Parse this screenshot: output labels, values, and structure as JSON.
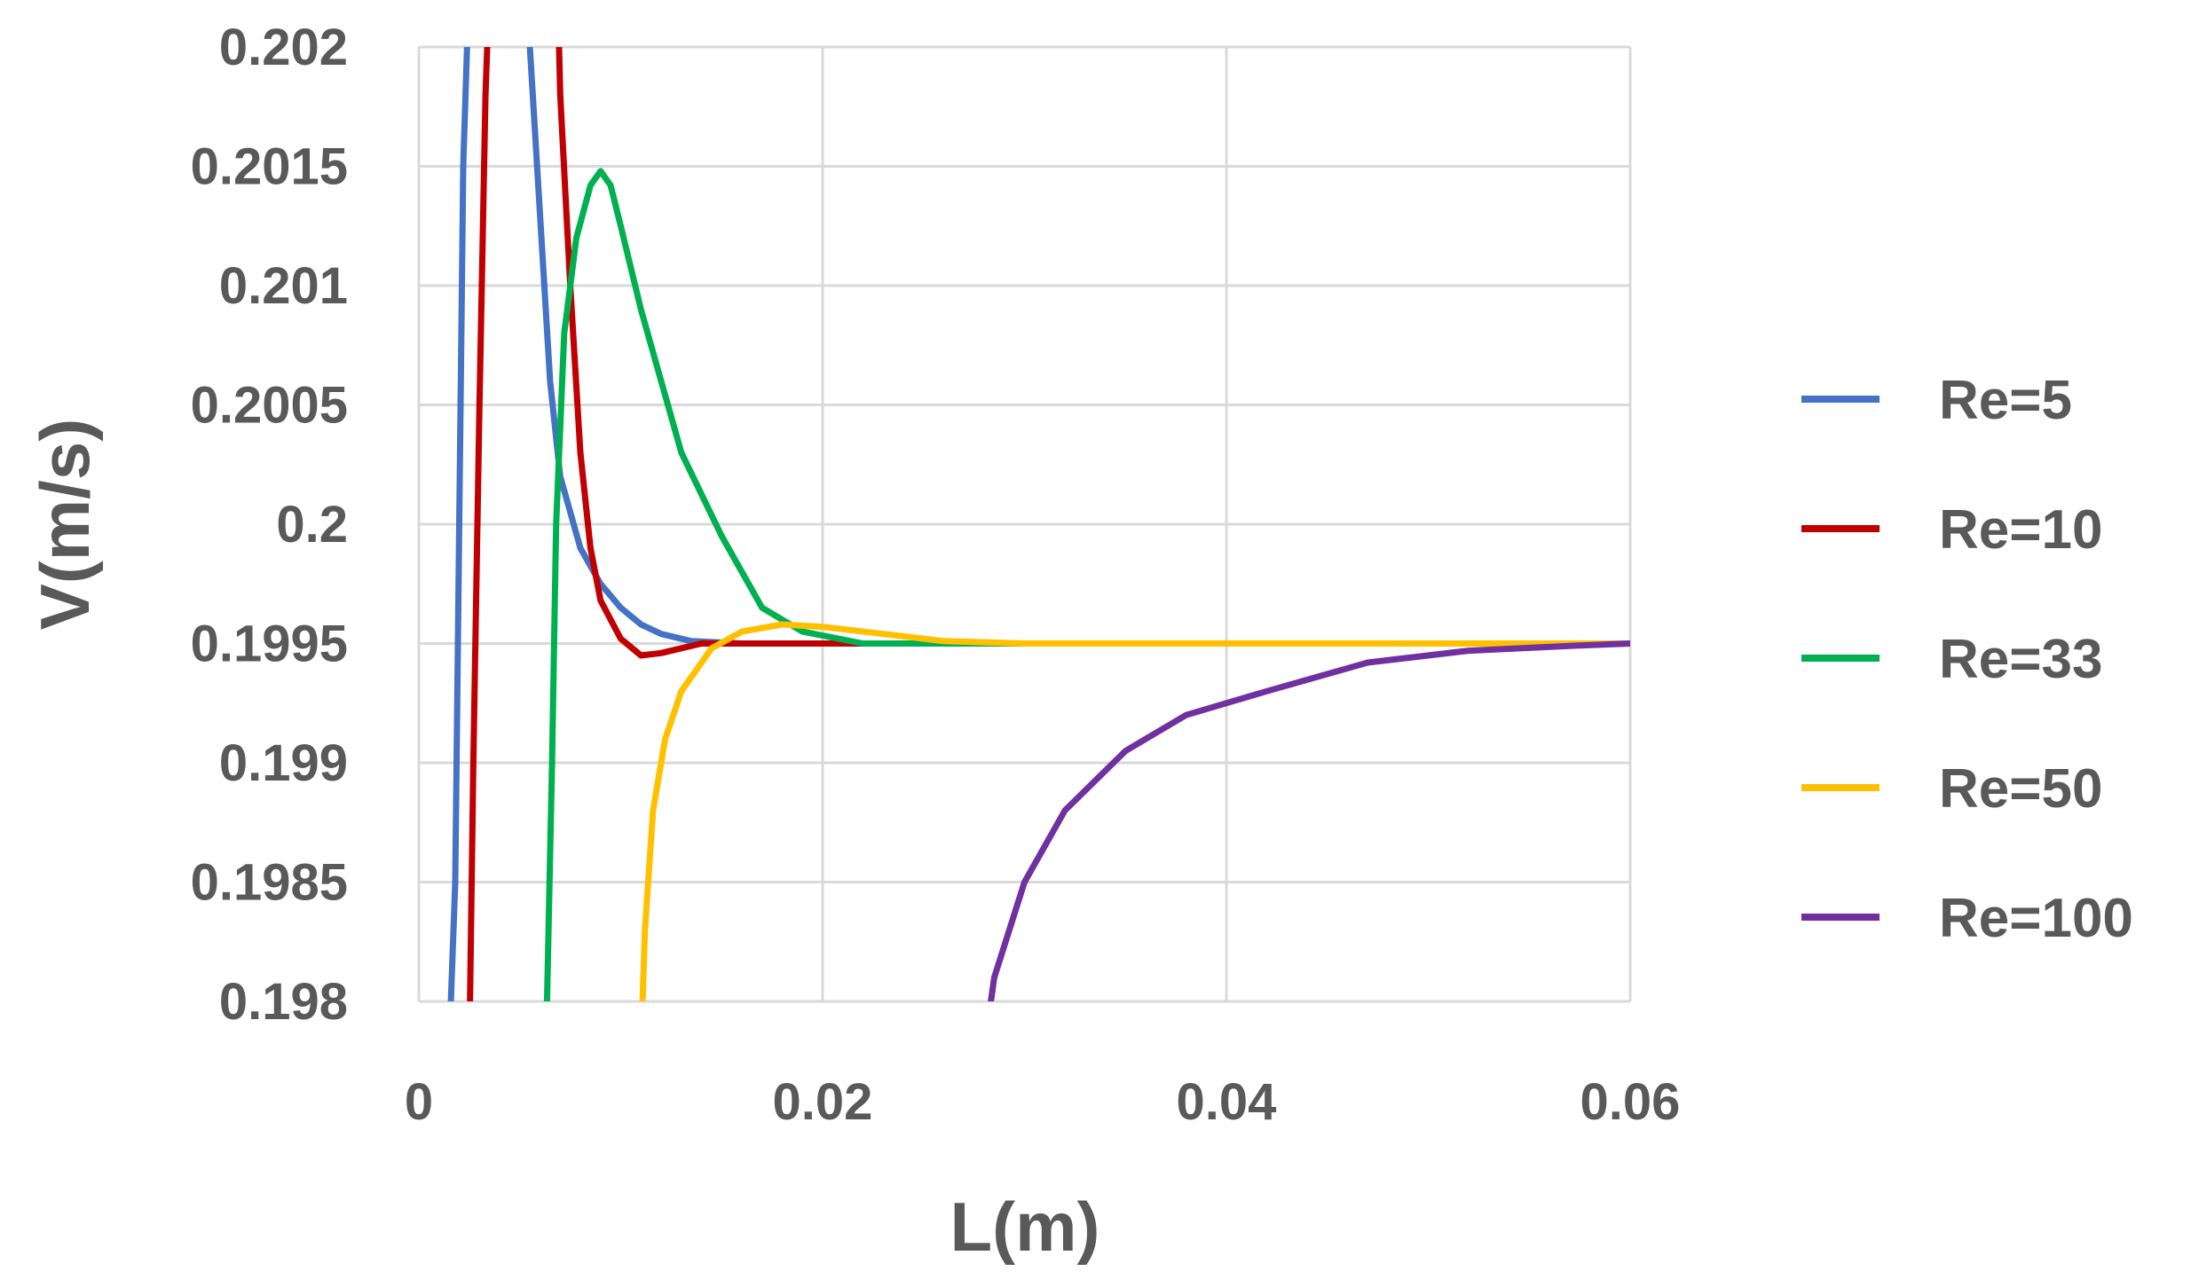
{
  "chart_data": {
    "type": "line",
    "title": "",
    "xlabel": "L(m)",
    "ylabel": "V(m/s)",
    "xlim": [
      0,
      0.06
    ],
    "ylim": [
      0.198,
      0.202
    ],
    "x_ticks": [
      "0",
      "0.02",
      "0.04",
      "0.06"
    ],
    "y_ticks": [
      "0.198",
      "0.1985",
      "0.199",
      "0.1995",
      "0.2",
      "0.2005",
      "0.201",
      "0.2015",
      "0.202"
    ],
    "grid": true,
    "legend_position": "right",
    "series": [
      {
        "name": "Re=5",
        "color": "#4472c4",
        "points": [
          [
            0.0015,
            0.1978
          ],
          [
            0.0018,
            0.1985
          ],
          [
            0.002,
            0.2
          ],
          [
            0.0022,
            0.2015
          ],
          [
            0.0025,
            0.2023
          ],
          [
            0.005,
            0.2025
          ],
          [
            0.0055,
            0.202
          ],
          [
            0.006,
            0.2013
          ],
          [
            0.0065,
            0.2006
          ],
          [
            0.007,
            0.2002
          ],
          [
            0.008,
            0.1999
          ],
          [
            0.009,
            0.19975
          ],
          [
            0.01,
            0.19965
          ],
          [
            0.011,
            0.19958
          ],
          [
            0.012,
            0.19954
          ],
          [
            0.0135,
            0.19951
          ],
          [
            0.016,
            0.1995
          ],
          [
            0.03,
            0.1995
          ],
          [
            0.06,
            0.1995
          ]
        ]
      },
      {
        "name": "Re=10",
        "color": "#c00000",
        "points": [
          [
            0.0025,
            0.1978
          ],
          [
            0.0027,
            0.199
          ],
          [
            0.003,
            0.2005
          ],
          [
            0.0033,
            0.2018
          ],
          [
            0.0036,
            0.2025
          ],
          [
            0.0068,
            0.2025
          ],
          [
            0.007,
            0.2018
          ],
          [
            0.0075,
            0.201
          ],
          [
            0.008,
            0.2003
          ],
          [
            0.0085,
            0.1999
          ],
          [
            0.009,
            0.19968
          ],
          [
            0.01,
            0.19952
          ],
          [
            0.011,
            0.19945
          ],
          [
            0.012,
            0.19946
          ],
          [
            0.014,
            0.1995
          ],
          [
            0.02,
            0.1995
          ],
          [
            0.06,
            0.1995
          ]
        ]
      },
      {
        "name": "Re=33",
        "color": "#00b050",
        "points": [
          [
            0.0063,
            0.1978
          ],
          [
            0.0066,
            0.199
          ],
          [
            0.0068,
            0.2
          ],
          [
            0.0072,
            0.2008
          ],
          [
            0.0078,
            0.2012
          ],
          [
            0.0085,
            0.20142
          ],
          [
            0.009,
            0.20148
          ],
          [
            0.0095,
            0.20142
          ],
          [
            0.01,
            0.20125
          ],
          [
            0.011,
            0.2009
          ],
          [
            0.012,
            0.2006
          ],
          [
            0.013,
            0.2003
          ],
          [
            0.015,
            0.19995
          ],
          [
            0.017,
            0.19965
          ],
          [
            0.019,
            0.19955
          ],
          [
            0.022,
            0.1995
          ],
          [
            0.03,
            0.1995
          ],
          [
            0.06,
            0.1995
          ]
        ]
      },
      {
        "name": "Re=50",
        "color": "#ffc000",
        "points": [
          [
            0.011,
            0.1978
          ],
          [
            0.0112,
            0.1983
          ],
          [
            0.0116,
            0.1988
          ],
          [
            0.0122,
            0.1991
          ],
          [
            0.013,
            0.1993
          ],
          [
            0.0145,
            0.19948
          ],
          [
            0.016,
            0.19955
          ],
          [
            0.018,
            0.19958
          ],
          [
            0.02,
            0.19957
          ],
          [
            0.023,
            0.19954
          ],
          [
            0.026,
            0.19951
          ],
          [
            0.03,
            0.1995
          ],
          [
            0.06,
            0.1995
          ]
        ]
      },
      {
        "name": "Re=100",
        "color": "#7030a0",
        "points": [
          [
            0.028,
            0.1978
          ],
          [
            0.0285,
            0.1981
          ],
          [
            0.03,
            0.1985
          ],
          [
            0.032,
            0.1988
          ],
          [
            0.035,
            0.19905
          ],
          [
            0.038,
            0.1992
          ],
          [
            0.042,
            0.1993
          ],
          [
            0.047,
            0.19942
          ],
          [
            0.052,
            0.19947
          ],
          [
            0.057,
            0.19949
          ],
          [
            0.06,
            0.1995
          ]
        ]
      }
    ]
  }
}
